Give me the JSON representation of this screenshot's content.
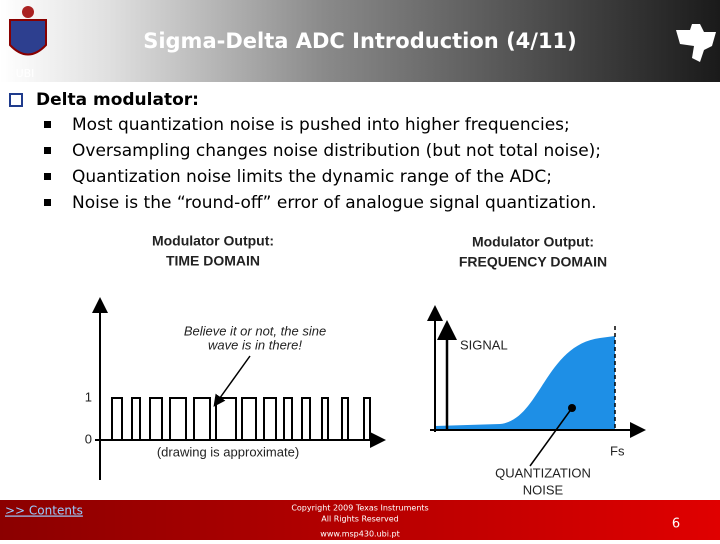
{
  "header": {
    "title": "Sigma-Delta ADC Introduction (4/11)",
    "logo_label": "UBI"
  },
  "body": {
    "heading": "Delta modulator:",
    "bullets": [
      "Most quantization noise is pushed into higher frequencies;",
      "Oversampling changes noise distribution (but not total noise);",
      "Quantization noise limits the dynamic range of the ADC;",
      "Noise is the “round-off” error of analogue signal quantization."
    ]
  },
  "figures": [
    {
      "title_lines": [
        "Modulator Output:",
        "TIME DOMAIN"
      ],
      "annotation_lines": [
        "Believe it or not, the sine",
        "wave is in there!"
      ],
      "level_labels": [
        "1",
        "0"
      ],
      "note": "(drawing is approximate)"
    },
    {
      "title_lines": [
        "Modulator Output:",
        "FREQUENCY DOMAIN"
      ],
      "signal_label": "SIGNAL",
      "fs_label": "Fs",
      "noise_label_lines": [
        "QUANTIZATION",
        "NOISE"
      ]
    }
  ],
  "footer": {
    "link": ">> Contents",
    "copyright_lines": [
      "Copyright  2009 Texas Instruments",
      "All Rights Reserved"
    ],
    "url": "www.msp430.ubi.pt",
    "page": "6"
  }
}
